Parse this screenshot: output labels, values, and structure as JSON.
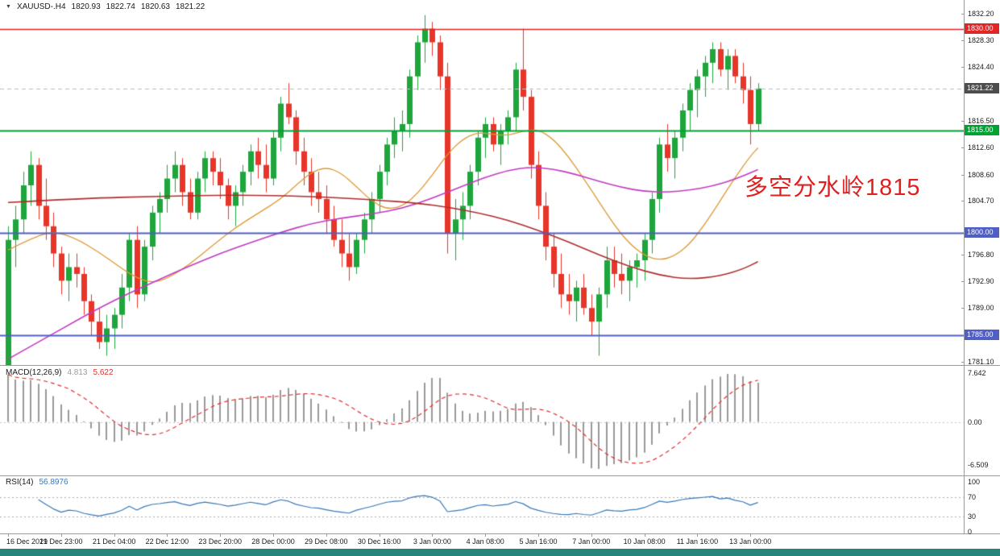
{
  "header": {
    "expand_icon": "▼",
    "symbol": "XAUUSD-.H4",
    "open": "1820.93",
    "high": "1822.74",
    "low": "1820.63",
    "close": "1821.22"
  },
  "annotation": {
    "text": "多空分水岭1815",
    "color": "#e01f1f"
  },
  "price_axis": {
    "ticks": [
      1832.2,
      1828.3,
      1824.4,
      1816.5,
      1812.6,
      1808.6,
      1804.7,
      1796.8,
      1792.9,
      1789.0,
      1781.1
    ],
    "badges": [
      {
        "label": "1830.00",
        "price": 1830.0,
        "color": "#e02626"
      },
      {
        "label": "1821.22",
        "price": 1821.22,
        "color": "#4d4d4d"
      },
      {
        "label": "1815.00",
        "price": 1815.0,
        "color": "#00a234"
      },
      {
        "label": "1800.00",
        "price": 1800.0,
        "color": "#4f5fc5"
      },
      {
        "label": "1785.00",
        "price": 1785.0,
        "color": "#4f5fc5"
      }
    ]
  },
  "levels": [
    {
      "price": 1830.0,
      "color": "#e02626",
      "width": 1.4,
      "style": "solid"
    },
    {
      "price": 1815.0,
      "color": "#00a234",
      "width": 2,
      "style": "solid"
    },
    {
      "price": 1800.0,
      "color": "#4f5fc5",
      "width": 2,
      "style": "solid"
    },
    {
      "price": 1785.0,
      "color": "#4f5fc5",
      "width": 2,
      "style": "solid"
    },
    {
      "price": 1821.22,
      "color": "#bbbbbb",
      "width": 1,
      "style": "dash"
    }
  ],
  "time_axis": {
    "labels": [
      "16 Dec 2021",
      "19 Dec 23:00",
      "21 Dec 04:00",
      "22 Dec 12:00",
      "23 Dec 20:00",
      "28 Dec 00:00",
      "29 Dec 08:00",
      "30 Dec 16:00",
      "3 Jan 00:00",
      "4 Jan 08:00",
      "5 Jan 16:00",
      "7 Jan 00:00",
      "10 Jan 08:00",
      "11 Jan 16:00",
      "13 Jan 00:00"
    ],
    "candles_per_label": 7
  },
  "macd_panel": {
    "label": "MACD(12,26,9)",
    "value_main": "4.813",
    "value_signal": "5.622",
    "axis": [
      "7.642",
      "0.00",
      "-6.509"
    ],
    "histogram_color": "#9a9a9a",
    "signal_color": "#e03030"
  },
  "rsi_panel": {
    "label": "RSI(14)",
    "value": "56.8976",
    "axis": [
      "100",
      "70",
      "30",
      "0"
    ],
    "levels": [
      70,
      30
    ],
    "line_color": "#3778b7"
  },
  "bottom_bar_color": "#26857b",
  "chart_data": {
    "type": "candlestick",
    "symbol": "XAUUSD",
    "timeframe": "H4",
    "title": "XAUUSD-.H4 1820.93 1822.74 1820.63 1821.22",
    "price_range": [
      1781.1,
      1832.2
    ],
    "up_color": "#1ea53c",
    "down_color": "#e8352a",
    "candles": [
      [
        1779,
        1801,
        1777,
        1799
      ],
      [
        1799,
        1804,
        1795,
        1802
      ],
      [
        1802,
        1809,
        1800,
        1807
      ],
      [
        1807,
        1812,
        1804,
        1810
      ],
      [
        1810,
        1811,
        1802,
        1804
      ],
      [
        1804,
        1808,
        1799,
        1801
      ],
      [
        1801,
        1803,
        1795,
        1797
      ],
      [
        1797,
        1798,
        1791,
        1793
      ],
      [
        1793,
        1797,
        1790,
        1795
      ],
      [
        1795,
        1797,
        1792,
        1794
      ],
      [
        1794,
        1795,
        1788,
        1790
      ],
      [
        1790,
        1791,
        1785,
        1787
      ],
      [
        1787,
        1789,
        1783,
        1784
      ],
      [
        1784,
        1788,
        1782,
        1786
      ],
      [
        1786,
        1789,
        1783,
        1788
      ],
      [
        1788,
        1794,
        1786,
        1792
      ],
      [
        1792,
        1800,
        1790,
        1799
      ],
      [
        1799,
        1801,
        1789,
        1791
      ],
      [
        1791,
        1799,
        1790,
        1798
      ],
      [
        1798,
        1804,
        1796,
        1803
      ],
      [
        1803,
        1806,
        1800,
        1805
      ],
      [
        1805,
        1810,
        1803,
        1808
      ],
      [
        1808,
        1812,
        1806,
        1810
      ],
      [
        1810,
        1811,
        1804,
        1806
      ],
      [
        1806,
        1808,
        1802,
        1803
      ],
      [
        1803,
        1809,
        1802,
        1808
      ],
      [
        1808,
        1812,
        1806,
        1811
      ],
      [
        1811,
        1812,
        1807,
        1809
      ],
      [
        1809,
        1811,
        1805,
        1807
      ],
      [
        1807,
        1808,
        1802,
        1804
      ],
      [
        1804,
        1807,
        1801,
        1806
      ],
      [
        1806,
        1810,
        1804,
        1809
      ],
      [
        1809,
        1813,
        1807,
        1812
      ],
      [
        1812,
        1814,
        1808,
        1810
      ],
      [
        1810,
        1813,
        1806,
        1808
      ],
      [
        1808,
        1815,
        1807,
        1814
      ],
      [
        1814,
        1820,
        1812,
        1819
      ],
      [
        1819,
        1822,
        1816,
        1817
      ],
      [
        1817,
        1818,
        1810,
        1812
      ],
      [
        1812,
        1814,
        1807,
        1809
      ],
      [
        1809,
        1811,
        1804,
        1806
      ],
      [
        1806,
        1809,
        1803,
        1805
      ],
      [
        1805,
        1807,
        1800,
        1802
      ],
      [
        1802,
        1804,
        1798,
        1799
      ],
      [
        1799,
        1802,
        1795,
        1797
      ],
      [
        1797,
        1800,
        1793,
        1795
      ],
      [
        1795,
        1800,
        1794,
        1799
      ],
      [
        1799,
        1803,
        1797,
        1802
      ],
      [
        1802,
        1806,
        1800,
        1805
      ],
      [
        1805,
        1810,
        1803,
        1809
      ],
      [
        1809,
        1814,
        1807,
        1813
      ],
      [
        1813,
        1817,
        1811,
        1815
      ],
      [
        1815,
        1818,
        1812,
        1816
      ],
      [
        1816,
        1824,
        1814,
        1823
      ],
      [
        1823,
        1829,
        1821,
        1828
      ],
      [
        1828,
        1832,
        1825,
        1830
      ],
      [
        1830,
        1831,
        1826,
        1828
      ],
      [
        1828,
        1829,
        1821,
        1823
      ],
      [
        1823,
        1825,
        1797,
        1800
      ],
      [
        1800,
        1805,
        1796,
        1802
      ],
      [
        1802,
        1806,
        1799,
        1804
      ],
      [
        1804,
        1810,
        1802,
        1809
      ],
      [
        1809,
        1815,
        1807,
        1814
      ],
      [
        1814,
        1817,
        1811,
        1816
      ],
      [
        1816,
        1817,
        1812,
        1813
      ],
      [
        1813,
        1816,
        1810,
        1815
      ],
      [
        1815,
        1818,
        1813,
        1817
      ],
      [
        1817,
        1825,
        1815,
        1824
      ],
      [
        1824,
        1830,
        1818,
        1820
      ],
      [
        1820,
        1821,
        1808,
        1810
      ],
      [
        1810,
        1812,
        1802,
        1804
      ],
      [
        1804,
        1806,
        1796,
        1798
      ],
      [
        1798,
        1800,
        1792,
        1794
      ],
      [
        1794,
        1797,
        1789,
        1791
      ],
      [
        1791,
        1794,
        1788,
        1790
      ],
      [
        1790,
        1793,
        1787,
        1792
      ],
      [
        1792,
        1794,
        1788,
        1789
      ],
      [
        1789,
        1791,
        1785,
        1787
      ],
      [
        1787,
        1792,
        1782,
        1791
      ],
      [
        1791,
        1798,
        1789,
        1796
      ],
      [
        1796,
        1798,
        1792,
        1794
      ],
      [
        1794,
        1797,
        1791,
        1793
      ],
      [
        1793,
        1796,
        1790,
        1795
      ],
      [
        1795,
        1797,
        1792,
        1796
      ],
      [
        1796,
        1800,
        1793,
        1799
      ],
      [
        1799,
        1806,
        1797,
        1805
      ],
      [
        1805,
        1814,
        1803,
        1813
      ],
      [
        1813,
        1816,
        1809,
        1811
      ],
      [
        1811,
        1815,
        1808,
        1814
      ],
      [
        1814,
        1819,
        1812,
        1818
      ],
      [
        1818,
        1822,
        1815,
        1821
      ],
      [
        1821,
        1824,
        1817,
        1823
      ],
      [
        1823,
        1826,
        1820,
        1825
      ],
      [
        1825,
        1828,
        1822,
        1827
      ],
      [
        1827,
        1828,
        1823,
        1824
      ],
      [
        1824,
        1827,
        1821,
        1826
      ],
      [
        1826,
        1827,
        1822,
        1823
      ],
      [
        1823,
        1825,
        1819,
        1821
      ],
      [
        1821,
        1823,
        1813,
        1816
      ],
      [
        1816,
        1822,
        1815,
        1821.22
      ]
    ],
    "moving_averages": [
      {
        "name": "ma-fast-orange",
        "color": "#dd9933",
        "width": 1.3,
        "points": [
          [
            0,
            1797.5
          ],
          [
            3,
            1799.2
          ],
          [
            6,
            1800.3
          ],
          [
            9,
            1799.2
          ],
          [
            12,
            1797.2
          ],
          [
            15,
            1794.8
          ],
          [
            17,
            1793.4
          ],
          [
            19,
            1792.7
          ],
          [
            21,
            1793.3
          ],
          [
            24,
            1795.4
          ],
          [
            27,
            1798.2
          ],
          [
            30,
            1800.8
          ],
          [
            33,
            1802.9
          ],
          [
            36,
            1805.0
          ],
          [
            38,
            1807.0
          ],
          [
            40,
            1808.9
          ],
          [
            42,
            1809.7
          ],
          [
            44,
            1808.8
          ],
          [
            46,
            1806.8
          ],
          [
            48,
            1804.7
          ],
          [
            50,
            1803.5
          ],
          [
            52,
            1803.9
          ],
          [
            54,
            1805.7
          ],
          [
            56,
            1808.5
          ],
          [
            58,
            1811.6
          ],
          [
            60,
            1813.8
          ],
          [
            62,
            1814.8
          ],
          [
            64,
            1814.5
          ],
          [
            66,
            1814.3
          ],
          [
            68,
            1815.0
          ],
          [
            70,
            1815.2
          ],
          [
            72,
            1813.8
          ],
          [
            74,
            1811.2
          ],
          [
            76,
            1808.0
          ],
          [
            78,
            1804.6
          ],
          [
            80,
            1801.2
          ],
          [
            82,
            1798.5
          ],
          [
            84,
            1796.7
          ],
          [
            86,
            1796.0
          ],
          [
            88,
            1796.6
          ],
          [
            90,
            1798.4
          ],
          [
            92,
            1801.3
          ],
          [
            94,
            1804.7
          ],
          [
            96,
            1808.2
          ],
          [
            98,
            1811.3
          ],
          [
            99,
            1812.5
          ]
        ]
      },
      {
        "name": "ma-medium-magenta",
        "color": "#c23ac2",
        "width": 1.6,
        "points": [
          [
            0,
            1781.5
          ],
          [
            4,
            1784.0
          ],
          [
            8,
            1786.5
          ],
          [
            12,
            1789.0
          ],
          [
            16,
            1791.2
          ],
          [
            20,
            1793.2
          ],
          [
            24,
            1795.2
          ],
          [
            28,
            1797.0
          ],
          [
            32,
            1798.6
          ],
          [
            36,
            1800.1
          ],
          [
            40,
            1801.4
          ],
          [
            44,
            1802.2
          ],
          [
            48,
            1802.8
          ],
          [
            52,
            1803.6
          ],
          [
            56,
            1805.1
          ],
          [
            60,
            1806.9
          ],
          [
            63,
            1808.2
          ],
          [
            66,
            1809.2
          ],
          [
            69,
            1809.7
          ],
          [
            72,
            1809.4
          ],
          [
            75,
            1808.6
          ],
          [
            78,
            1807.6
          ],
          [
            81,
            1806.7
          ],
          [
            84,
            1806.1
          ],
          [
            87,
            1806.0
          ],
          [
            90,
            1806.3
          ],
          [
            93,
            1806.9
          ],
          [
            96,
            1807.9
          ],
          [
            99,
            1809.3
          ]
        ]
      },
      {
        "name": "ma-slow-darkred",
        "color": "#b02c2c",
        "width": 1.6,
        "points": [
          [
            0,
            1804.5
          ],
          [
            10,
            1805.1
          ],
          [
            20,
            1805.4
          ],
          [
            30,
            1805.6
          ],
          [
            40,
            1805.4
          ],
          [
            48,
            1804.9
          ],
          [
            54,
            1804.4
          ],
          [
            58,
            1803.8
          ],
          [
            62,
            1803.0
          ],
          [
            66,
            1801.9
          ],
          [
            70,
            1800.4
          ],
          [
            74,
            1798.7
          ],
          [
            78,
            1796.8
          ],
          [
            82,
            1795.1
          ],
          [
            86,
            1793.8
          ],
          [
            90,
            1793.2
          ],
          [
            94,
            1793.7
          ],
          [
            97,
            1794.7
          ],
          [
            99,
            1795.8
          ]
        ]
      }
    ],
    "macd": {
      "params": [
        12,
        26,
        9
      ],
      "current_main": 4.813,
      "current_signal": 5.622,
      "axis_max": 7.642,
      "axis_min": -6.509
    },
    "rsi": {
      "period": 14,
      "current": 56.8976,
      "levels": [
        70,
        30
      ]
    }
  }
}
